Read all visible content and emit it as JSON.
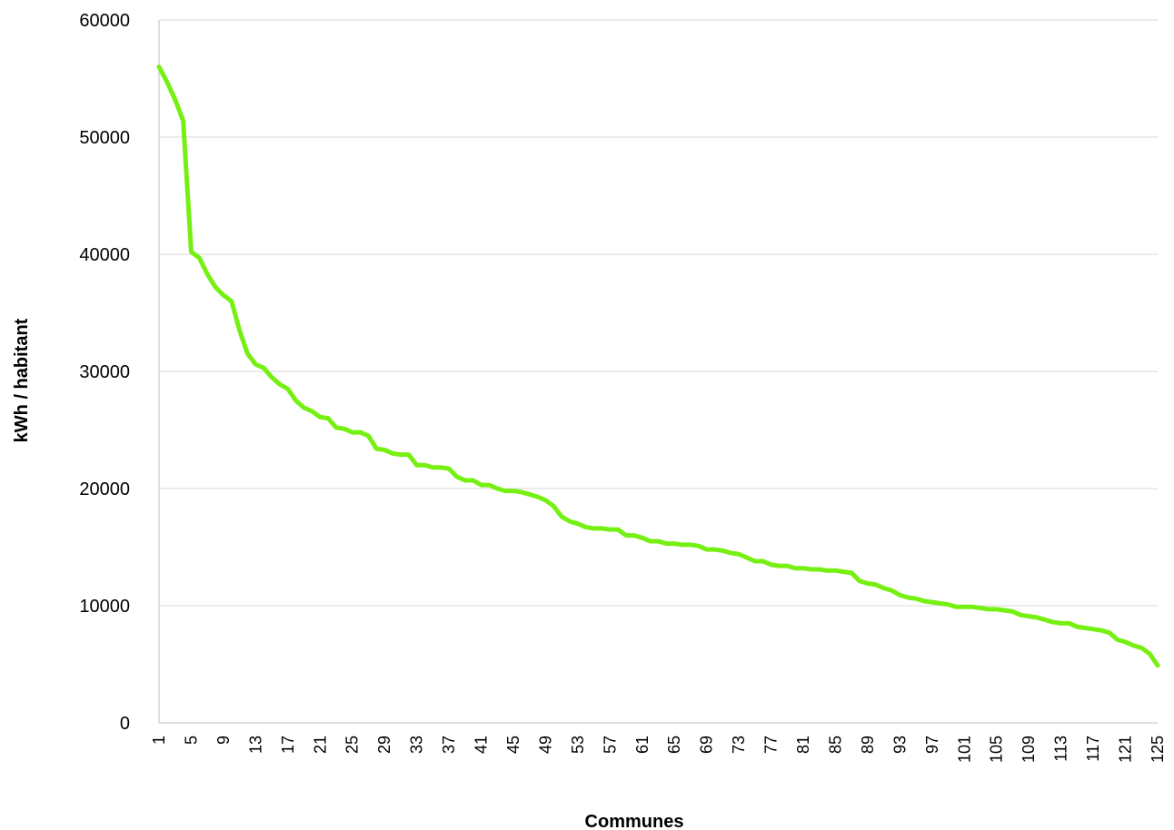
{
  "chart_data": {
    "type": "line",
    "xlabel": "Communes",
    "ylabel": "kWh / habitant",
    "xlim": [
      1,
      125
    ],
    "ylim": [
      0,
      60000
    ],
    "y_ticks": [
      "0",
      "10000",
      "20000",
      "30000",
      "40000",
      "50000",
      "60000"
    ],
    "x_tick_step": 4,
    "grid": "horizontal",
    "colors": {
      "line": "#76f013",
      "grid": "#d9d9d9",
      "axis": "#bfbfbf"
    },
    "series": [
      {
        "x": [
          1,
          2,
          3,
          4,
          5,
          6,
          7,
          8,
          9,
          10,
          11,
          12,
          13,
          14,
          15,
          16,
          17,
          18,
          19,
          20,
          21,
          22,
          23,
          24,
          25,
          26,
          27,
          28,
          29,
          30,
          31,
          32,
          33,
          34,
          35,
          36,
          37,
          38,
          39,
          40,
          41,
          42,
          43,
          44,
          45,
          46,
          47,
          48,
          49,
          50,
          51,
          52,
          53,
          54,
          55,
          56,
          57,
          58,
          59,
          60,
          61,
          62,
          63,
          64,
          65,
          66,
          67,
          68,
          69,
          70,
          71,
          72,
          73,
          74,
          75,
          76,
          77,
          78,
          79,
          80,
          81,
          82,
          83,
          84,
          85,
          86,
          87,
          88,
          89,
          90,
          91,
          92,
          93,
          94,
          95,
          96,
          97,
          98,
          99,
          100,
          101,
          102,
          103,
          104,
          105,
          106,
          107,
          108,
          109,
          110,
          111,
          112,
          113,
          114,
          115,
          116,
          117,
          118,
          119,
          120,
          121,
          122,
          123,
          124,
          125
        ],
        "values": [
          56000,
          54700,
          53200,
          51400,
          40200,
          39700,
          38300,
          37200,
          36500,
          36000,
          33500,
          31500,
          30600,
          30300,
          29500,
          28900,
          28500,
          27500,
          26900,
          26600,
          26100,
          26000,
          25200,
          25100,
          24800,
          24800,
          24500,
          23400,
          23300,
          23000,
          22900,
          22900,
          22000,
          22000,
          21800,
          21800,
          21700,
          21000,
          20700,
          20700,
          20300,
          20300,
          20000,
          19800,
          19800,
          19700,
          19500,
          19300,
          19000,
          18500,
          17600,
          17200,
          17000,
          16700,
          16600,
          16600,
          16500,
          16500,
          16000,
          16000,
          15800,
          15500,
          15500,
          15300,
          15300,
          15200,
          15200,
          15100,
          14800,
          14800,
          14700,
          14500,
          14400,
          14100,
          13800,
          13800,
          13500,
          13400,
          13400,
          13200,
          13200,
          13100,
          13100,
          13000,
          13000,
          12900,
          12800,
          12100,
          11900,
          11800,
          11500,
          11300,
          10900,
          10700,
          10600,
          10400,
          10300,
          10200,
          10100,
          9900,
          9900,
          9900,
          9800,
          9700,
          9700,
          9600,
          9500,
          9200,
          9100,
          9000,
          8800,
          8600,
          8500,
          8500,
          8200,
          8100,
          8000,
          7900,
          7700,
          7100,
          6900,
          6600,
          6400,
          5900,
          4900
        ]
      }
    ]
  }
}
